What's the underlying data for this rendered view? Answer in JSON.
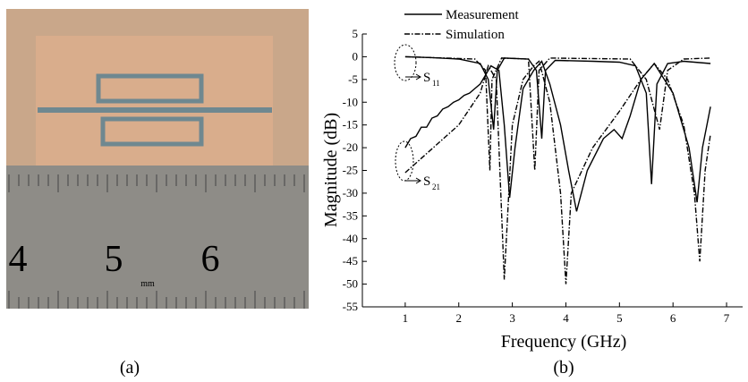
{
  "captions": [
    "(a)",
    "(b)"
  ],
  "photo": {
    "ruler_labels": [
      "4",
      "5",
      "6"
    ],
    "unit_label": "mm"
  },
  "chart_data": {
    "type": "line",
    "x_label": "Frequency (GHz)",
    "y_label": "Magnitude (dB)",
    "xlim": [
      0.2,
      7.3
    ],
    "xticks": [
      1,
      2,
      3,
      4,
      5,
      6,
      7
    ],
    "ylim": [
      -55,
      5
    ],
    "yticks": [
      -55,
      -50,
      -45,
      -40,
      -35,
      -30,
      -25,
      -20,
      -15,
      -10,
      -5,
      0,
      5
    ],
    "legend": "top",
    "annotations": [
      {
        "text": "S",
        "sub": "11"
      },
      {
        "text": "S",
        "sub": "21"
      }
    ],
    "series": [
      {
        "name": "Measurement",
        "color": "#000000",
        "dash": "solid",
        "lines": [
          {
            "x": [
              1,
              1.5,
              2.0,
              2.4,
              2.55,
              2.65,
              2.72,
              2.85,
              3.3,
              3.45,
              3.55,
              3.62,
              3.8,
              4.5,
              5.0,
              5.3,
              5.5,
              5.6,
              5.7,
              5.9,
              6.2,
              6.7
            ],
            "values": [
              0,
              -0.2,
              -0.5,
              -1.5,
              -5,
              -16,
              -3,
              -0.3,
              -0.5,
              -3,
              -18,
              -3,
              -0.8,
              -1,
              -1.2,
              -2,
              -8,
              -28,
              -6,
              -1.5,
              -1,
              -1.5
            ]
          },
          {
            "x": [
              1,
              1.1,
              1.2,
              1.3,
              1.4,
              1.5,
              1.6,
              1.7,
              1.8,
              1.9,
              2.0,
              2.1,
              2.2,
              2.3,
              2.4,
              2.5,
              2.6,
              2.75,
              2.85,
              2.95,
              3.05,
              3.2,
              3.4,
              3.55,
              3.7,
              3.9,
              4.05,
              4.2,
              4.4,
              4.7,
              4.9,
              5.05,
              5.2,
              5.4,
              5.65,
              6.0,
              6.3,
              6.45,
              6.55,
              6.7
            ],
            "values": [
              -20,
              -18,
              -17.5,
              -15.5,
              -15.5,
              -13.5,
              -13,
              -11.5,
              -11,
              -10,
              -9.5,
              -8.5,
              -8,
              -7,
              -6,
              -4,
              -2,
              -3,
              -15,
              -31,
              -20,
              -7,
              -3,
              -1,
              -6,
              -15,
              -25,
              -34,
              -25,
              -18,
              -16,
              -18,
              -13,
              -5,
              -1.5,
              -8,
              -20,
              -32,
              -20,
              -11
            ]
          }
        ]
      },
      {
        "name": "Simulation",
        "color": "#000000",
        "dash": "dashdot",
        "lines": [
          {
            "x": [
              1,
              2.3,
              2.5,
              2.58,
              2.62,
              2.8,
              3.3,
              3.42,
              3.5,
              3.7,
              5.2,
              5.5,
              5.75,
              5.9,
              6.2,
              6.7
            ],
            "values": [
              0,
              -0.5,
              -3,
              -25,
              -5,
              -0.3,
              -0.5,
              -25,
              -3,
              -0.3,
              -0.5,
              -5,
              -16,
              -3,
              -0.5,
              -0.3
            ]
          },
          {
            "x": [
              1,
              2.0,
              2.4,
              2.55,
              2.7,
              2.85,
              3.0,
              3.2,
              3.4,
              3.5,
              3.7,
              3.9,
              4.0,
              4.1,
              4.5,
              5.0,
              5.4,
              5.65,
              5.9,
              6.2,
              6.4,
              6.5,
              6.6,
              6.7
            ],
            "values": [
              -25.5,
              -15,
              -8,
              -2,
              -5,
              -49,
              -15,
              -5,
              -2,
              -1,
              -10,
              -30,
              -50,
              -30,
              -20,
              -12,
              -5,
              -1.5,
              -5,
              -15,
              -30,
              -45,
              -25,
              -17
            ]
          }
        ]
      }
    ]
  }
}
